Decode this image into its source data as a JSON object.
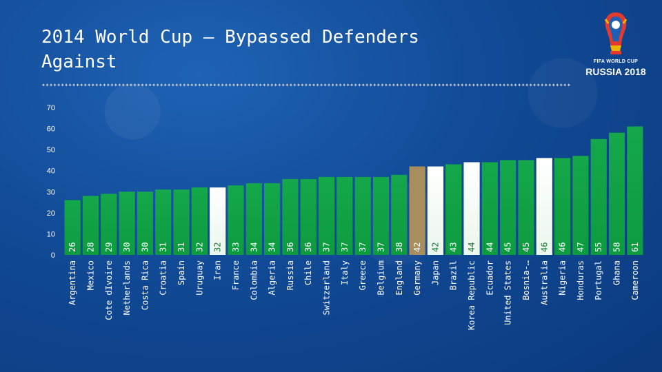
{
  "slide": {
    "title": "2014 World Cup  –  Bypassed Defenders\nAgainst",
    "logo_line1": "FIFA WORLD CUP",
    "logo_line2": "RUSSIA 2018",
    "colors": {
      "bar_default": "#0e9b40",
      "bar_white": "#eaf7ec",
      "bar_gold": "#a88e5c"
    }
  },
  "chart_data": {
    "type": "bar",
    "title": "2014 World Cup – Bypassed Defenders Against",
    "xlabel": "",
    "ylabel": "",
    "ylim": [
      0,
      70
    ],
    "yticks": [
      0,
      10,
      20,
      30,
      40,
      50,
      60,
      70
    ],
    "categories": [
      "Argentina",
      "Mexico",
      "Cote dIvoire",
      "Netherlands",
      "Costa Rica",
      "Croatia",
      "Spain",
      "Uruguay",
      "Iran",
      "France",
      "Colombia",
      "Algeria",
      "Russia",
      "Chile",
      "Switzerland",
      "Italy",
      "Greece",
      "Belgium",
      "England",
      "Germany",
      "Japan",
      "Brazil",
      "Korea Republic",
      "Ecuador",
      "United States",
      "Bosnia-…",
      "Australia",
      "Nigeria",
      "Honduras",
      "Portugal",
      "Ghana",
      "Cameroon"
    ],
    "values": [
      26,
      28,
      29,
      30,
      30,
      31,
      31,
      32,
      32,
      33,
      34,
      34,
      36,
      36,
      37,
      37,
      37,
      37,
      38,
      42,
      42,
      43,
      44,
      44,
      45,
      45,
      46,
      46,
      47,
      55,
      58,
      61
    ],
    "labels": [
      "26",
      "28",
      "29",
      "30",
      "30",
      "31",
      "31",
      "32",
      "32",
      "33",
      "34",
      "34",
      "36",
      "36",
      "37",
      "37",
      "37",
      "37",
      "38",
      "42",
      "42",
      "43",
      "44",
      "44",
      "45",
      "45",
      "46",
      "46",
      "47",
      "55",
      "58",
      "61"
    ],
    "highlight": [
      "default",
      "default",
      "default",
      "default",
      "default",
      "default",
      "default",
      "default",
      "white",
      "default",
      "default",
      "default",
      "default",
      "default",
      "default",
      "default",
      "default",
      "default",
      "default",
      "gold",
      "white",
      "default",
      "white",
      "default",
      "default",
      "default",
      "white",
      "default",
      "default",
      "default",
      "default",
      "default"
    ]
  }
}
